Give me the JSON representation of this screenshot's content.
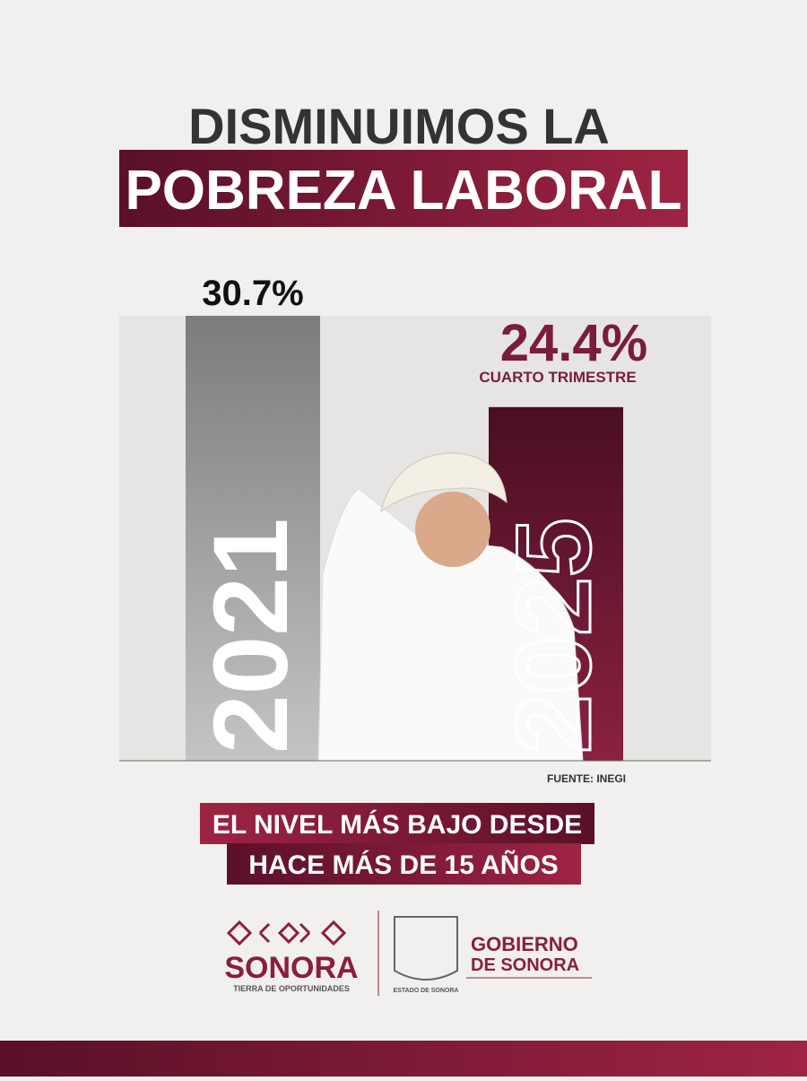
{
  "chart_data": {
    "type": "bar",
    "title_lines": [
      "DISMINUIMOS LA",
      "POBREZA LABORAL"
    ],
    "categories": [
      "2021",
      "2025"
    ],
    "series": [
      {
        "name": "Pobreza laboral",
        "colors": [
          "#8a8a8a",
          "#7a1d3a"
        ],
        "values": [
          30.7,
          24.4
        ],
        "value_labels": [
          "30.7%",
          "24.4%"
        ]
      }
    ],
    "annotations": [
      "CUARTO TRIMESTRE"
    ],
    "source": "FUENTE: INEGI",
    "banner_lines": [
      "EL NIVEL MÁS BAJO DESDE",
      "HACE MÁS DE 15 AÑOS"
    ],
    "logos": {
      "left_name": "SONORA",
      "left_tagline": "TIERRA DE OPORTUNIDADES",
      "seal": "ESTADO DE SONORA",
      "right_line1": "GOBIERNO",
      "right_line2": "DE SONORA"
    },
    "ylim": [
      0,
      32
    ]
  }
}
